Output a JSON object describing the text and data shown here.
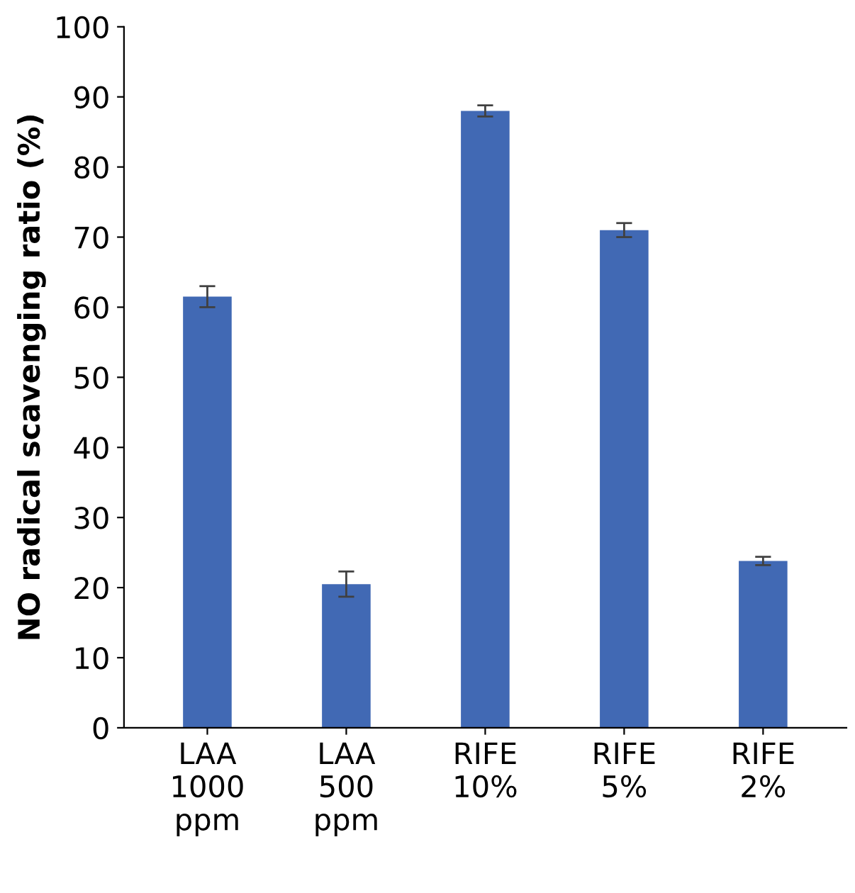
{
  "chart_data": {
    "type": "bar",
    "ylabel": "NO radical scavenging ratio (%)",
    "categories": [
      "LAA\n1000\nppm",
      "LAA\n500\nppm",
      "RIFE\n10%",
      "RIFE\n5%",
      "RIFE\n2%"
    ],
    "values": [
      61.5,
      20.5,
      88.0,
      71.0,
      23.8
    ],
    "errors": [
      1.5,
      1.8,
      0.8,
      1.0,
      0.6
    ],
    "color": "#4169b4",
    "ylim": [
      0,
      100
    ],
    "yticks": [
      0,
      10,
      20,
      30,
      40,
      50,
      60,
      70,
      80,
      90,
      100
    ],
    "grid": false,
    "legend": false
  }
}
